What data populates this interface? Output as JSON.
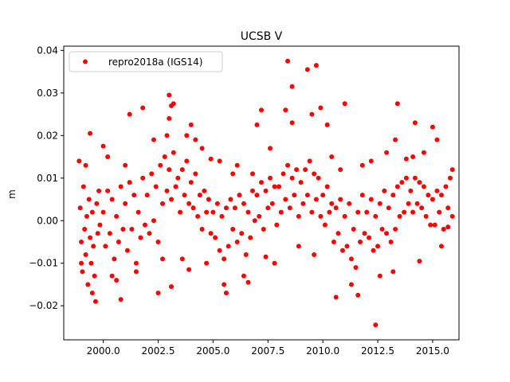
{
  "chart_data": {
    "type": "scatter",
    "title": "UCSB V",
    "xlabel": "",
    "ylabel": "m",
    "xlim": [
      1998.2,
      2016.2
    ],
    "ylim": [
      -0.028,
      0.041
    ],
    "xticks": [
      {
        "value": 2000.0,
        "label": "2000.0"
      },
      {
        "value": 2002.5,
        "label": "2002.5"
      },
      {
        "value": 2005.0,
        "label": "2005.0"
      },
      {
        "value": 2007.5,
        "label": "2007.5"
      },
      {
        "value": 2010.0,
        "label": "2010.0"
      },
      {
        "value": 2012.5,
        "label": "2012.5"
      },
      {
        "value": 2015.0,
        "label": "2015.0"
      }
    ],
    "yticks": [
      {
        "value": -0.02,
        "label": "−0.02"
      },
      {
        "value": -0.01,
        "label": "−0.01"
      },
      {
        "value": 0.0,
        "label": "0.00"
      },
      {
        "value": 0.01,
        "label": "0.01"
      },
      {
        "value": 0.02,
        "label": "0.02"
      },
      {
        "value": 0.03,
        "label": "0.03"
      },
      {
        "value": 0.04,
        "label": "0.04"
      }
    ],
    "grid": false,
    "legend": {
      "position": "top-left",
      "entries": [
        "repro2018a (IGS14)"
      ]
    },
    "series": [
      {
        "name": "repro2018a (IGS14)",
        "color": "#ff0000",
        "marker": "circle",
        "points": [
          [
            1998.9,
            0.014
          ],
          [
            1998.95,
            0.003
          ],
          [
            1999.0,
            -0.005
          ],
          [
            1999.05,
            -0.012
          ],
          [
            1999.1,
            0.008
          ],
          [
            1999.15,
            -0.002
          ],
          [
            1999.2,
            -0.008
          ],
          [
            1999.25,
            0.001
          ],
          [
            1999.3,
            -0.015
          ],
          [
            1999.35,
            0.005
          ],
          [
            1999.4,
            -0.004
          ],
          [
            1999.45,
            -0.01
          ],
          [
            1999.5,
            0.002
          ],
          [
            1999.55,
            -0.006
          ],
          [
            1999.6,
            -0.013
          ],
          [
            1999.65,
            -0.019
          ],
          [
            1999.7,
            0.004
          ],
          [
            1999.75,
            -0.003
          ],
          [
            1999.8,
            0.007
          ],
          [
            1999.85,
            -0.001
          ],
          [
            1999.4,
            0.0205
          ],
          [
            1999.2,
            0.013
          ],
          [
            1999.5,
            -0.017
          ],
          [
            1999.0,
            -0.01
          ],
          [
            2000.0,
            0.002
          ],
          [
            2000.1,
            -0.006
          ],
          [
            2000.2,
            0.007
          ],
          [
            2000.3,
            -0.003
          ],
          [
            2000.4,
            0.005
          ],
          [
            2000.5,
            -0.009
          ],
          [
            2000.6,
            0.001
          ],
          [
            2000.7,
            -0.005
          ],
          [
            2000.8,
            0.008
          ],
          [
            2000.9,
            -0.002
          ],
          [
            2000.0,
            0.0175
          ],
          [
            2000.2,
            0.015
          ],
          [
            2000.6,
            -0.014
          ],
          [
            2000.8,
            -0.0185
          ],
          [
            2000.4,
            -0.013
          ],
          [
            2001.0,
            0.004
          ],
          [
            2001.1,
            -0.007
          ],
          [
            2001.2,
            0.009
          ],
          [
            2001.3,
            -0.002
          ],
          [
            2001.4,
            0.006
          ],
          [
            2001.5,
            -0.01
          ],
          [
            2001.6,
            0.002
          ],
          [
            2001.7,
            -0.004
          ],
          [
            2001.8,
            0.01
          ],
          [
            2001.9,
            -0.001
          ],
          [
            2001.2,
            0.025
          ],
          [
            2001.8,
            0.0265
          ],
          [
            2001.5,
            -0.012
          ],
          [
            2001.0,
            0.013
          ],
          [
            2002.0,
            0.006
          ],
          [
            2002.1,
            -0.003
          ],
          [
            2002.2,
            0.011
          ],
          [
            2002.3,
            0.0
          ],
          [
            2002.4,
            0.008
          ],
          [
            2002.5,
            -0.005
          ],
          [
            2002.6,
            0.013
          ],
          [
            2002.7,
            0.004
          ],
          [
            2002.8,
            0.015
          ],
          [
            2002.9,
            0.007
          ],
          [
            2002.5,
            -0.017
          ],
          [
            2002.3,
            0.019
          ],
          [
            2002.9,
            0.02
          ],
          [
            2002.7,
            -0.009
          ],
          [
            2003.0,
            0.0295
          ],
          [
            2003.1,
            0.027
          ],
          [
            2003.2,
            0.0275
          ],
          [
            2003.0,
            0.024
          ],
          [
            2003.1,
            -0.0155
          ],
          [
            2003.0,
            0.012
          ],
          [
            2003.1,
            0.005
          ],
          [
            2003.2,
            0.016
          ],
          [
            2003.3,
            0.008
          ],
          [
            2003.4,
            0.01
          ],
          [
            2003.5,
            0.002
          ],
          [
            2003.6,
            0.012
          ],
          [
            2003.7,
            0.006
          ],
          [
            2003.8,
            0.014
          ],
          [
            2003.9,
            0.004
          ],
          [
            2003.6,
            -0.009
          ],
          [
            2003.9,
            -0.0115
          ],
          [
            2004.0,
            0.0225
          ],
          [
            2003.8,
            0.02
          ],
          [
            2004.0,
            0.009
          ],
          [
            2004.1,
            0.003
          ],
          [
            2004.2,
            0.011
          ],
          [
            2004.3,
            0.001
          ],
          [
            2004.4,
            0.006
          ],
          [
            2004.5,
            -0.002
          ],
          [
            2004.6,
            0.007
          ],
          [
            2004.7,
            0.002
          ],
          [
            2004.8,
            0.005
          ],
          [
            2004.9,
            -0.003
          ],
          [
            2004.2,
            0.019
          ],
          [
            2004.5,
            0.017
          ],
          [
            2004.7,
            -0.01
          ],
          [
            2004.9,
            0.0145
          ],
          [
            2005.0,
            0.002
          ],
          [
            2005.1,
            -0.004
          ],
          [
            2005.2,
            0.004
          ],
          [
            2005.3,
            -0.007
          ],
          [
            2005.4,
            0.001
          ],
          [
            2005.5,
            -0.009
          ],
          [
            2005.6,
            0.003
          ],
          [
            2005.7,
            -0.006
          ],
          [
            2005.8,
            0.005
          ],
          [
            2005.9,
            -0.002
          ],
          [
            2005.5,
            -0.015
          ],
          [
            2005.6,
            -0.017
          ],
          [
            2005.3,
            0.014
          ],
          [
            2005.9,
            0.011
          ],
          [
            2006.0,
            0.003
          ],
          [
            2006.1,
            -0.005
          ],
          [
            2006.2,
            0.006
          ],
          [
            2006.3,
            -0.003
          ],
          [
            2006.4,
            0.004
          ],
          [
            2006.5,
            -0.008
          ],
          [
            2006.6,
            0.002
          ],
          [
            2006.7,
            -0.004
          ],
          [
            2006.8,
            0.007
          ],
          [
            2006.9,
            0.0
          ],
          [
            2006.1,
            0.013
          ],
          [
            2006.4,
            -0.013
          ],
          [
            2006.6,
            -0.0145
          ],
          [
            2006.8,
            0.011
          ],
          [
            2007.0,
            0.006
          ],
          [
            2007.1,
            0.001
          ],
          [
            2007.2,
            0.009
          ],
          [
            2007.3,
            -0.002
          ],
          [
            2007.4,
            0.007
          ],
          [
            2007.5,
            0.003
          ],
          [
            2007.6,
            0.01
          ],
          [
            2007.7,
            0.004
          ],
          [
            2007.8,
            0.008
          ],
          [
            2007.9,
            -0.001
          ],
          [
            2007.0,
            0.0225
          ],
          [
            2007.2,
            0.026
          ],
          [
            2007.4,
            -0.0085
          ],
          [
            2007.8,
            -0.01
          ],
          [
            2007.6,
            0.017
          ],
          [
            2008.0,
            0.008
          ],
          [
            2008.1,
            0.002
          ],
          [
            2008.2,
            0.011
          ],
          [
            2008.3,
            0.005
          ],
          [
            2008.4,
            0.013
          ],
          [
            2008.5,
            0.003
          ],
          [
            2008.6,
            0.01
          ],
          [
            2008.7,
            0.006
          ],
          [
            2008.8,
            0.012
          ],
          [
            2008.9,
            0.001
          ],
          [
            2008.4,
            0.0375
          ],
          [
            2008.6,
            0.0315
          ],
          [
            2008.3,
            0.026
          ],
          [
            2008.6,
            0.023
          ],
          [
            2008.9,
            -0.006
          ],
          [
            2009.0,
            0.009
          ],
          [
            2009.1,
            0.004
          ],
          [
            2009.2,
            0.012
          ],
          [
            2009.3,
            0.006
          ],
          [
            2009.4,
            0.014
          ],
          [
            2009.5,
            0.002
          ],
          [
            2009.6,
            0.011
          ],
          [
            2009.7,
            0.005
          ],
          [
            2009.8,
            0.01
          ],
          [
            2009.9,
            0.001
          ],
          [
            2009.3,
            0.0355
          ],
          [
            2009.7,
            0.0365
          ],
          [
            2009.5,
            0.025
          ],
          [
            2009.9,
            0.0265
          ],
          [
            2009.6,
            -0.008
          ],
          [
            2010.0,
            0.006
          ],
          [
            2010.1,
            -0.001
          ],
          [
            2010.2,
            0.008
          ],
          [
            2010.3,
            0.002
          ],
          [
            2010.4,
            0.004
          ],
          [
            2010.5,
            -0.005
          ],
          [
            2010.6,
            0.003
          ],
          [
            2010.7,
            -0.003
          ],
          [
            2010.8,
            0.005
          ],
          [
            2010.9,
            -0.007
          ],
          [
            2010.2,
            0.0225
          ],
          [
            2010.6,
            -0.018
          ],
          [
            2010.4,
            0.015
          ],
          [
            2010.8,
            0.012
          ],
          [
            2011.0,
            0.001
          ],
          [
            2011.1,
            -0.006
          ],
          [
            2011.2,
            0.004
          ],
          [
            2011.3,
            -0.009
          ],
          [
            2011.4,
            -0.002
          ],
          [
            2011.5,
            -0.011
          ],
          [
            2011.6,
            0.002
          ],
          [
            2011.7,
            -0.005
          ],
          [
            2011.8,
            0.006
          ],
          [
            2011.9,
            -0.003
          ],
          [
            2011.0,
            0.0275
          ],
          [
            2011.6,
            -0.0175
          ],
          [
            2011.3,
            -0.015
          ],
          [
            2011.8,
            0.013
          ],
          [
            2012.0,
            0.002
          ],
          [
            2012.1,
            -0.004
          ],
          [
            2012.2,
            0.005
          ],
          [
            2012.3,
            -0.007
          ],
          [
            2012.4,
            0.001
          ],
          [
            2012.5,
            -0.006
          ],
          [
            2012.6,
            0.004
          ],
          [
            2012.7,
            -0.002
          ],
          [
            2012.8,
            0.007
          ],
          [
            2012.9,
            -0.003
          ],
          [
            2012.4,
            -0.0245
          ],
          [
            2012.2,
            0.014
          ],
          [
            2012.6,
            -0.013
          ],
          [
            2012.9,
            0.016
          ],
          [
            2013.0,
            0.003
          ],
          [
            2013.1,
            -0.005
          ],
          [
            2013.2,
            0.006
          ],
          [
            2013.3,
            -0.002
          ],
          [
            2013.4,
            0.008
          ],
          [
            2013.5,
            0.001
          ],
          [
            2013.6,
            0.009
          ],
          [
            2013.7,
            0.002
          ],
          [
            2013.8,
            0.01
          ],
          [
            2013.9,
            0.004
          ],
          [
            2013.4,
            0.0275
          ],
          [
            2013.3,
            0.019
          ],
          [
            2013.2,
            -0.012
          ],
          [
            2013.8,
            0.0145
          ],
          [
            2014.0,
            0.007
          ],
          [
            2014.1,
            0.002
          ],
          [
            2014.2,
            0.01
          ],
          [
            2014.3,
            0.004
          ],
          [
            2014.4,
            0.009
          ],
          [
            2014.5,
            0.003
          ],
          [
            2014.6,
            0.008
          ],
          [
            2014.7,
            0.001
          ],
          [
            2014.8,
            0.006
          ],
          [
            2014.9,
            -0.001
          ],
          [
            2014.2,
            0.023
          ],
          [
            2014.1,
            0.015
          ],
          [
            2014.4,
            -0.0095
          ],
          [
            2014.6,
            0.016
          ],
          [
            2015.0,
            0.005
          ],
          [
            2015.1,
            -0.001
          ],
          [
            2015.2,
            0.007
          ],
          [
            2015.3,
            0.002
          ],
          [
            2015.4,
            0.006
          ],
          [
            2015.5,
            -0.002
          ],
          [
            2015.6,
            0.008
          ],
          [
            2015.7,
            0.003
          ],
          [
            2015.8,
            0.01
          ],
          [
            2015.9,
            0.001
          ],
          [
            2015.0,
            0.022
          ],
          [
            2015.2,
            0.019
          ],
          [
            2015.4,
            -0.006
          ],
          [
            2015.7,
            -0.0015
          ],
          [
            2015.9,
            0.012
          ]
        ]
      }
    ]
  }
}
